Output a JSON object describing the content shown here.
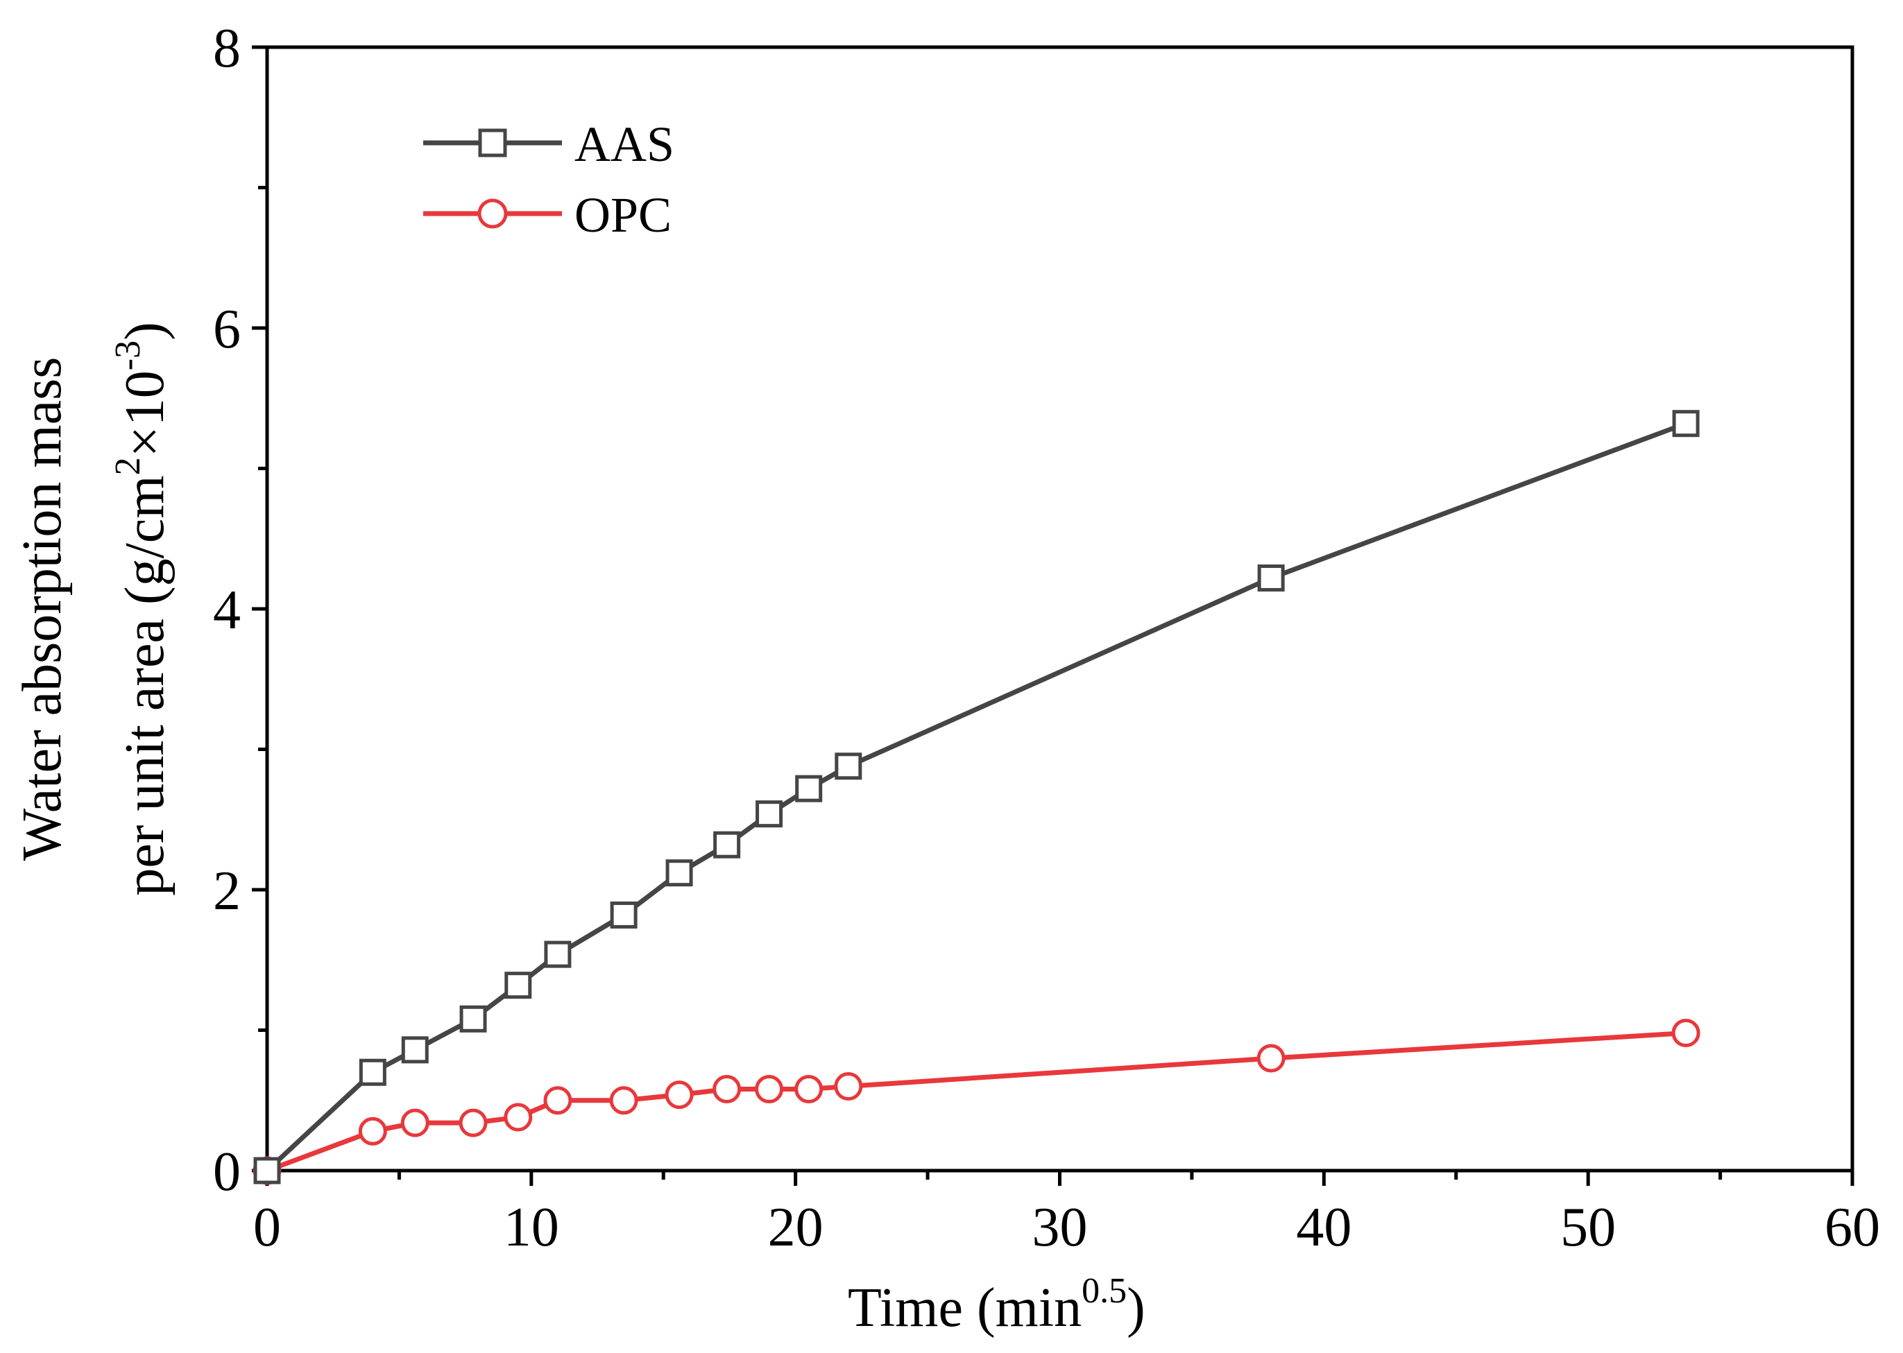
{
  "chart_data": {
    "type": "line",
    "title": "",
    "xlabel": {
      "main": "Time (min",
      "sup": "0.5",
      "close": ")"
    },
    "ylabel": {
      "line1": "Water absorption mass",
      "line2_a": "per unit area (g/cm",
      "line2_sup1": "2",
      "line2_b": "×10",
      "line2_sup2": "-3",
      "line2_c": ")"
    },
    "xlim": [
      0,
      60
    ],
    "ylim": [
      0,
      8
    ],
    "x_ticks": [
      "0",
      "10",
      "20",
      "30",
      "40",
      "50",
      "60"
    ],
    "y_ticks": [
      "0",
      "2",
      "4",
      "6",
      "8"
    ],
    "grid": false,
    "legend_position": "top-left",
    "series": [
      {
        "name": "AAS",
        "color": "#454545",
        "marker": "square",
        "x": [
          0,
          4,
          5.6,
          7.8,
          9.5,
          11,
          13.5,
          15.6,
          17.4,
          19,
          20.5,
          22,
          38,
          53.7
        ],
        "y": [
          0,
          0.7,
          0.86,
          1.08,
          1.32,
          1.54,
          1.82,
          2.12,
          2.32,
          2.54,
          2.72,
          2.88,
          4.22,
          5.32
        ]
      },
      {
        "name": "OPC",
        "color": "#e8383b",
        "marker": "circle",
        "x": [
          0,
          4,
          5.6,
          7.8,
          9.5,
          11,
          13.5,
          15.6,
          17.4,
          19,
          20.5,
          22,
          38,
          53.7
        ],
        "y": [
          0,
          0.28,
          0.34,
          0.34,
          0.38,
          0.5,
          0.5,
          0.54,
          0.58,
          0.58,
          0.58,
          0.6,
          0.8,
          0.98
        ]
      }
    ]
  }
}
